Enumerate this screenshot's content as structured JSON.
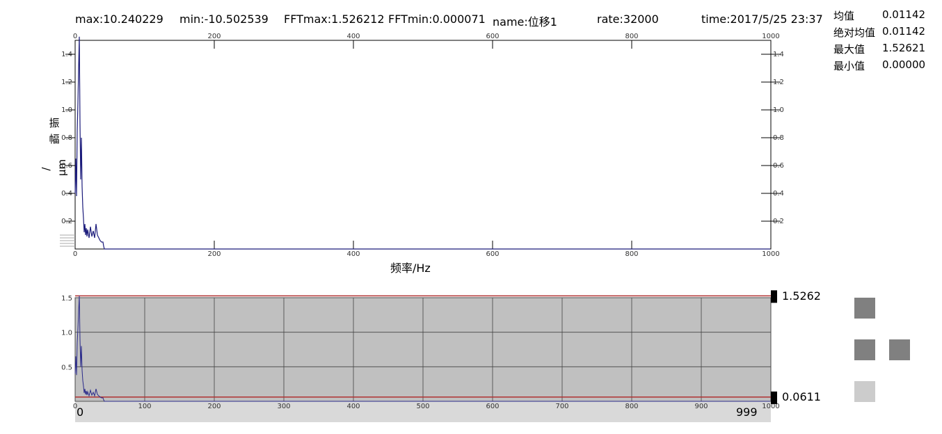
{
  "header": {
    "max": "max:10.240229",
    "min": "min:-10.502539",
    "fftmax": "FFTmax:1.526212",
    "fftmin": "FFTmin:0.000071",
    "name": "name:位移1",
    "rate": "rate:32000",
    "time": "time:2017/5/25 23:37"
  },
  "stats": [
    {
      "label": "均值",
      "value": "0.01142"
    },
    {
      "label": "绝对均值",
      "value": "0.01142"
    },
    {
      "label": "最大值",
      "value": "1.52621"
    },
    {
      "label": "最小值",
      "value": "0.00000"
    }
  ],
  "axis_labels": {
    "y_char1": "振",
    "y_char2": "幅",
    "y_unit": "/μm",
    "x": "频率/Hz"
  },
  "overview": {
    "upper_marker": "1.5262",
    "lower_marker": "0.0611",
    "range_start": "0",
    "range_end": "999"
  },
  "colors": {
    "series": "#1a1a7a",
    "threshold": "#b03030",
    "overview_bg": "#c0c0c0",
    "scroll_bg": "#d9d9d9",
    "button_dark": "#808080",
    "button_light": "#cccccc"
  },
  "chart_data": [
    {
      "type": "line",
      "title": "",
      "xlabel": "频率/Hz",
      "ylabel": "振幅/μm",
      "xlim": [
        0,
        1000
      ],
      "ylim": [
        0,
        1.5
      ],
      "xticks": [
        0,
        200,
        400,
        600,
        800,
        1000
      ],
      "yticks": [
        0.2,
        0.4,
        0.6,
        0.8,
        1.0,
        1.2,
        1.4
      ],
      "grid": false,
      "series": [
        {
          "x": [
            0,
            1,
            2,
            3,
            4,
            5,
            6,
            7,
            8,
            9,
            10,
            11,
            12,
            13,
            14,
            15,
            16,
            17,
            18,
            19,
            20,
            22,
            24,
            26,
            28,
            30,
            32,
            34,
            36,
            38,
            40,
            41,
            42,
            50,
            100,
            200,
            400,
            600,
            800,
            999
          ],
          "y": [
            0.4,
            0.65,
            0.38,
            0.85,
            1.05,
            1.3,
            1.526,
            0.9,
            0.5,
            0.8,
            0.45,
            0.3,
            0.22,
            0.12,
            0.18,
            0.1,
            0.15,
            0.09,
            0.14,
            0.11,
            0.08,
            0.16,
            0.09,
            0.13,
            0.08,
            0.18,
            0.1,
            0.08,
            0.06,
            0.05,
            0.05,
            0.02,
            0.0,
            0.0,
            0.0,
            0.0,
            0.0,
            0.0,
            0.0,
            0.0
          ]
        }
      ]
    },
    {
      "type": "line",
      "title": "",
      "xlabel": "",
      "ylabel": "",
      "xlim": [
        0,
        1000
      ],
      "ylim": [
        0,
        1.5
      ],
      "xticks": [
        0,
        100,
        200,
        300,
        400,
        500,
        600,
        700,
        800,
        900,
        1000
      ],
      "yticks": [
        0.5,
        1.0,
        1.5
      ],
      "grid": true,
      "thresholds": [
        1.5262,
        0.0611
      ],
      "series": [
        {
          "x": [
            0,
            1,
            2,
            3,
            4,
            5,
            6,
            7,
            8,
            9,
            10,
            11,
            12,
            13,
            14,
            15,
            16,
            17,
            18,
            19,
            20,
            22,
            24,
            26,
            28,
            30,
            32,
            34,
            36,
            38,
            40,
            41,
            42,
            50,
            100,
            200,
            400,
            600,
            800,
            999
          ],
          "y": [
            0.4,
            0.65,
            0.38,
            0.85,
            1.05,
            1.3,
            1.526,
            0.9,
            0.5,
            0.8,
            0.45,
            0.3,
            0.22,
            0.12,
            0.18,
            0.1,
            0.15,
            0.09,
            0.14,
            0.11,
            0.08,
            0.16,
            0.09,
            0.13,
            0.08,
            0.18,
            0.1,
            0.08,
            0.06,
            0.05,
            0.05,
            0.02,
            0.0,
            0.0,
            0.0,
            0.0,
            0.0,
            0.0,
            0.0,
            0.0
          ]
        }
      ]
    }
  ]
}
